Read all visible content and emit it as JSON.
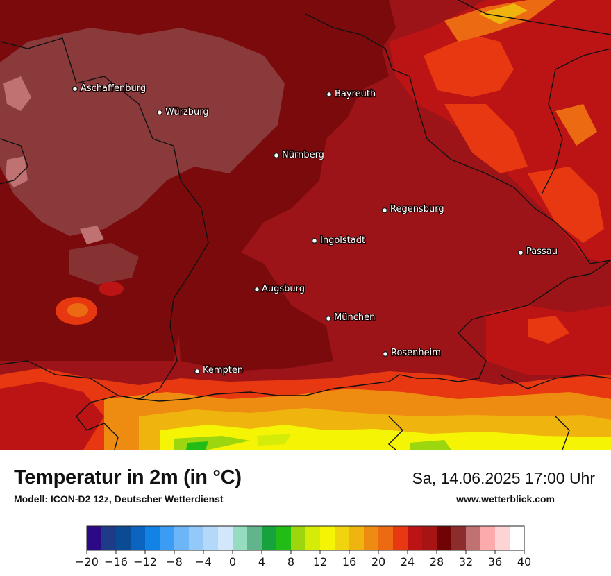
{
  "map": {
    "cities": [
      {
        "name": "Aschaffenburg",
        "id": "aschaffenburg"
      },
      {
        "name": "Würzburg",
        "id": "wuerzburg"
      },
      {
        "name": "Bayreuth",
        "id": "bayreuth"
      },
      {
        "name": "Nürnberg",
        "id": "nuernberg"
      },
      {
        "name": "Regensburg",
        "id": "regensburg"
      },
      {
        "name": "Ingolstadt",
        "id": "ingolstadt"
      },
      {
        "name": "Passau",
        "id": "passau"
      },
      {
        "name": "Augsburg",
        "id": "augsburg"
      },
      {
        "name": "München",
        "id": "muenchen"
      },
      {
        "name": "Rosenheim",
        "id": "rosenheim"
      },
      {
        "name": "Kempten",
        "id": "kempten"
      }
    ],
    "colors": {
      "base": "#9c1418",
      "dark": "#7a0a0c",
      "mauve": "#8a3a3a",
      "orange": "#e6491a",
      "border": "#111111"
    }
  },
  "footer": {
    "title": "Temperatur in 2m (in °C)",
    "model": "Modell: ICON-D2 12z, Deutscher Wetterdienst",
    "datetime": "Sa, 14.06.2025 17:00 Uhr",
    "site": "www.wetterblick.com"
  },
  "legend": {
    "min": -20,
    "max": 40,
    "step": 2,
    "ticks": [
      "−20",
      "−16",
      "−12",
      "−8",
      "−4",
      "0",
      "4",
      "8",
      "12",
      "16",
      "20",
      "24",
      "28",
      "32",
      "36",
      "40"
    ],
    "tick_values": [
      -20,
      -16,
      -12,
      -8,
      -4,
      0,
      4,
      8,
      12,
      16,
      20,
      24,
      28,
      32,
      36,
      40
    ],
    "colors": [
      "#2c0a86",
      "#1d3b86",
      "#0b4b94",
      "#0b64c0",
      "#1282e6",
      "#3a9cf2",
      "#6cb6f8",
      "#94c8f8",
      "#b4d8fa",
      "#d2e6fc",
      "#96dcc0",
      "#62b48c",
      "#16a23c",
      "#22bc16",
      "#9cd60e",
      "#d4ec08",
      "#f4f404",
      "#f0d40e",
      "#f0b40e",
      "#ee8c12",
      "#ec6a12",
      "#e83812",
      "#bc1414",
      "#a81414",
      "#700404",
      "#8c2c2c",
      "#c07272",
      "#fcaaaa",
      "#fcd4d4",
      "#ffffff"
    ]
  }
}
